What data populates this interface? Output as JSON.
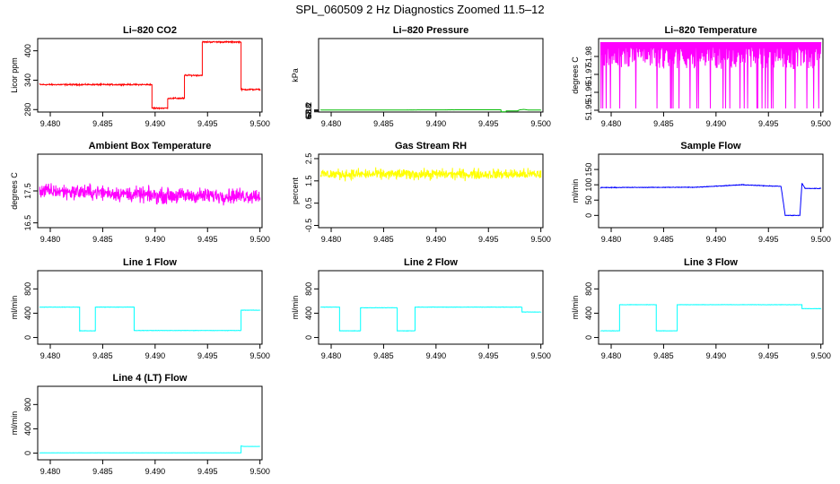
{
  "figure_title": "SPL_060509  2 Hz Diagnostics Zoomed 11.5–12",
  "chart_data": [
    {
      "type": "line",
      "title": "Li–820 CO2",
      "xlabel": "",
      "ylabel": "Licor ppm",
      "color": "#ff0000",
      "xlim": [
        9.4788,
        9.5002
      ],
      "xticks": [
        "9.480",
        "9.485",
        "9.490",
        "9.495",
        "9.500"
      ],
      "ylim": [
        275,
        425
      ],
      "yticks": [
        "280",
        "340",
        "400"
      ],
      "ytick_values": [
        280,
        340,
        400
      ],
      "x": [
        9.479,
        9.4897,
        9.4897,
        9.4912,
        9.4912,
        9.4928,
        9.4928,
        9.4945,
        9.4945,
        9.4982,
        9.4982,
        9.5
      ],
      "y": [
        331,
        331,
        283,
        283,
        303,
        303,
        350,
        350,
        418,
        418,
        321,
        321
      ],
      "noise": 2
    },
    {
      "type": "line",
      "title": "Li–820 Pressure",
      "xlabel": "",
      "ylabel": "kPa",
      "color": "#00bb00",
      "xlim": [
        9.4788,
        9.5002
      ],
      "xticks": [
        "9.480",
        "9.485",
        "9.490",
        "9.495",
        "9.500"
      ],
      "ylim": [
        67.75,
        83.35
      ],
      "yticks": [
        "67.8",
        "68.0",
        "68.2"
      ],
      "ytick_values": [
        67.8,
        68.0,
        68.2
      ],
      "x": [
        9.479,
        9.4818,
        9.483,
        9.486,
        9.4875,
        9.488,
        9.49,
        9.4905,
        9.4925,
        9.494,
        9.4955,
        9.4962,
        9.4962,
        9.4967,
        9.4967,
        9.4978,
        9.4978,
        9.498,
        9.4984,
        9.4988,
        9.5
      ],
      "y": [
        68.17,
        68.17,
        68.18,
        68.18,
        68.19,
        68.19,
        68.2,
        68.21,
        68.22,
        68.22,
        68.23,
        68.24,
        67.79,
        67.79,
        67.99,
        67.99,
        68.04,
        68.23,
        68.31,
        68.17,
        68.17
      ],
      "noise": 0.005
    },
    {
      "type": "line",
      "title": "Li–820 Temperature",
      "xlabel": "",
      "ylabel": "degrees C",
      "color": "#ff00ff",
      "xlim": [
        9.4788,
        9.5002
      ],
      "xticks": [
        "9.480",
        "9.485",
        "9.490",
        "9.495",
        "9.500"
      ],
      "ylim": [
        51.949,
        51.99
      ],
      "yticks": [
        "51.95",
        "51.96",
        "51.97",
        "51.98"
      ],
      "ytick_values": [
        51.95,
        51.96,
        51.97,
        51.98
      ],
      "x": [
        9.479,
        9.5
      ],
      "y": [
        51.988,
        51.988
      ],
      "pattern": "binary",
      "low": 51.951,
      "high": 51.988
    },
    {
      "type": "line",
      "title": "Ambient Box Temperature",
      "xlabel": "",
      "ylabel": "degrees C",
      "color": "#ff00ff",
      "xlim": [
        9.4788,
        9.5002
      ],
      "xticks": [
        "9.480",
        "9.485",
        "9.490",
        "9.495",
        "9.500"
      ],
      "ylim": [
        16.35,
        18.65
      ],
      "yticks": [
        "16.5",
        "17.5"
      ],
      "ytick_values": [
        16.5,
        17.5
      ],
      "x": [
        9.479,
        9.485,
        9.49,
        9.5
      ],
      "y": [
        17.5,
        17.45,
        17.35,
        17.35
      ],
      "noise": 0.35
    },
    {
      "type": "line",
      "title": "Gas Stream RH",
      "xlabel": "",
      "ylabel": "percent",
      "color": "#ffff00",
      "xlim": [
        9.4788,
        9.5002
      ],
      "xticks": [
        "9.480",
        "9.485",
        "9.490",
        "9.495",
        "9.500"
      ],
      "ylim": [
        -0.6,
        2.7
      ],
      "yticks": [
        "-0.5",
        "0.5",
        "1.5",
        "2.5"
      ],
      "ytick_values": [
        -0.5,
        0.5,
        1.5,
        2.5
      ],
      "x": [
        9.479,
        9.5
      ],
      "y": [
        1.8,
        1.8
      ],
      "noise": 0.35
    },
    {
      "type": "line",
      "title": "Sample Flow",
      "xlabel": "",
      "ylabel": "ml/min",
      "color": "#0000ff",
      "xlim": [
        9.4788,
        9.5002
      ],
      "xticks": [
        "9.480",
        "9.485",
        "9.490",
        "9.495",
        "9.500"
      ],
      "ylim": [
        -40,
        200
      ],
      "yticks": [
        "0",
        "50",
        "100",
        "150"
      ],
      "ytick_values": [
        0,
        50,
        100,
        150
      ],
      "x": [
        9.479,
        9.488,
        9.4925,
        9.4945,
        9.4962,
        9.4966,
        9.498,
        9.4982,
        9.4985,
        9.5
      ],
      "y": [
        91,
        92,
        100,
        97,
        95,
        0,
        0,
        105,
        88,
        88
      ],
      "noise": 1.5
    },
    {
      "type": "line",
      "title": "Line 1 Flow",
      "xlabel": "",
      "ylabel": "ml/min",
      "color": "#00ffff",
      "xlim": [
        9.4788,
        9.5002
      ],
      "xticks": [
        "9.480",
        "9.485",
        "9.490",
        "9.495",
        "9.500"
      ],
      "ylim": [
        -110,
        1100
      ],
      "yticks": [
        "0",
        "400",
        "800"
      ],
      "ytick_values": [
        0,
        400,
        800
      ],
      "x": [
        9.479,
        9.4828,
        9.4828,
        9.4843,
        9.4843,
        9.488,
        9.488,
        9.4982,
        9.4982,
        9.5
      ],
      "y": [
        500,
        500,
        110,
        110,
        500,
        500,
        115,
        115,
        450,
        450
      ],
      "noise": 4
    },
    {
      "type": "line",
      "title": "Line 2 Flow",
      "xlabel": "",
      "ylabel": "ml/min",
      "color": "#00ffff",
      "xlim": [
        9.4788,
        9.5002
      ],
      "xticks": [
        "9.480",
        "9.485",
        "9.490",
        "9.495",
        "9.500"
      ],
      "ylim": [
        -110,
        1100
      ],
      "yticks": [
        "0",
        "400",
        "800"
      ],
      "ytick_values": [
        0,
        400,
        800
      ],
      "x": [
        9.479,
        9.4808,
        9.4808,
        9.4828,
        9.4828,
        9.4863,
        9.4863,
        9.488,
        9.488,
        9.4982,
        9.4982,
        9.5
      ],
      "y": [
        500,
        500,
        110,
        110,
        490,
        490,
        110,
        110,
        500,
        500,
        420,
        420
      ],
      "noise": 4
    },
    {
      "type": "line",
      "title": "Line 3 Flow",
      "xlabel": "",
      "ylabel": "ml/min",
      "color": "#00ffff",
      "xlim": [
        9.4788,
        9.5002
      ],
      "xticks": [
        "9.480",
        "9.485",
        "9.490",
        "9.495",
        "9.500"
      ],
      "ylim": [
        -110,
        1100
      ],
      "yticks": [
        "0",
        "400",
        "800"
      ],
      "ytick_values": [
        0,
        400,
        800
      ],
      "x": [
        9.479,
        9.4808,
        9.4808,
        9.4843,
        9.4843,
        9.4863,
        9.4863,
        9.4982,
        9.4982,
        9.5
      ],
      "y": [
        110,
        110,
        540,
        540,
        110,
        110,
        540,
        540,
        475,
        475
      ],
      "noise": 4
    },
    {
      "type": "line",
      "title": "Line 4 (LT) Flow",
      "xlabel": "",
      "ylabel": "ml/min",
      "color": "#00ffff",
      "xlim": [
        9.4788,
        9.5002
      ],
      "xticks": [
        "9.480",
        "9.485",
        "9.490",
        "9.495",
        "9.500"
      ],
      "ylim": [
        -110,
        1100
      ],
      "yticks": [
        "0",
        "400",
        "800"
      ],
      "ytick_values": [
        0,
        400,
        800
      ],
      "x": [
        9.479,
        9.4982,
        9.4982,
        9.4984,
        9.5
      ],
      "y": [
        5,
        5,
        120,
        110,
        110
      ],
      "noise": 1.5
    }
  ]
}
